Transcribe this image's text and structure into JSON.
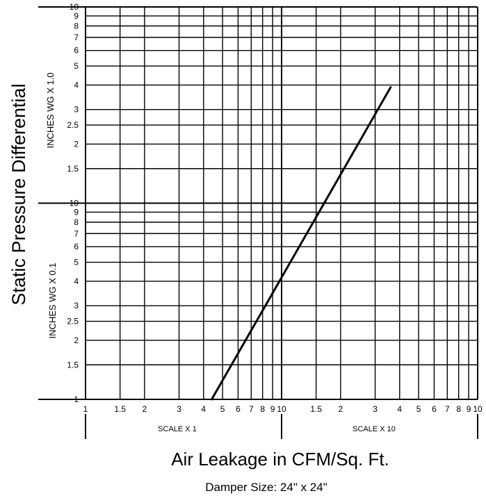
{
  "chart_data": {
    "type": "line",
    "title": "",
    "subtitle": "Damper Size: 24\" x 24\"",
    "xlabel": "Air Leakage in CFM/Sq. Ft.",
    "ylabel": "Static Pressure Differential",
    "x_scale": "log",
    "y_scale": "log",
    "xlim": [
      1,
      100
    ],
    "ylim": [
      0.1,
      10
    ],
    "grid": true,
    "legend": "none",
    "x_ticks": [
      "1",
      "1.5",
      "2",
      "3",
      "4",
      "5",
      "6",
      "7",
      "8",
      "9",
      "10",
      "1.5",
      "2",
      "3",
      "4",
      "5",
      "6",
      "7",
      "8",
      "9",
      "10"
    ],
    "x_scale_labels": [
      "SCALE X 1",
      "SCALE X 10"
    ],
    "y_ticks_lower": [
      "1",
      "1.5",
      "2",
      "2.5",
      "3",
      "4",
      "5",
      "6",
      "7",
      "8",
      "9",
      "10"
    ],
    "y_ticks_upper": [
      "10",
      "9",
      "8",
      "7",
      "6",
      "5",
      "4",
      "3",
      "2.5",
      "2",
      "1.5"
    ],
    "y_unit_labels": [
      "INCHES WG X 1.0",
      "INCHES WG X  0.1"
    ],
    "series": [
      {
        "color": "#000000",
        "points": [
          {
            "x": 4.4,
            "y": 0.1
          },
          {
            "x": 36,
            "y": 3.9
          }
        ]
      }
    ]
  }
}
